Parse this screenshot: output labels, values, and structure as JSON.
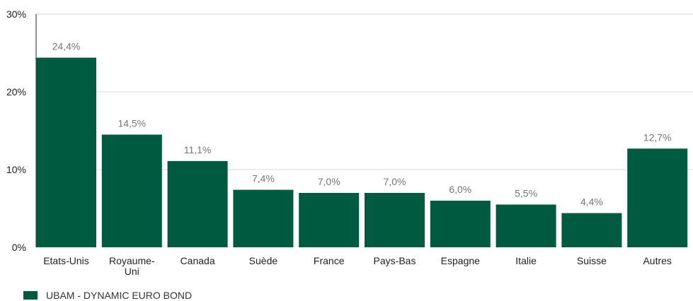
{
  "chart_data": {
    "type": "bar",
    "categories": [
      "Etats-Unis",
      "Royaume-Uni",
      "Canada",
      "Suède",
      "France",
      "Pays-Bas",
      "Espagne",
      "Italie",
      "Suisse",
      "Autres"
    ],
    "category_lines": [
      [
        "Etats-Unis"
      ],
      [
        "Royaume-",
        "Uni"
      ],
      [
        "Canada"
      ],
      [
        "Suède"
      ],
      [
        "France"
      ],
      [
        "Pays-Bas"
      ],
      [
        "Espagne"
      ],
      [
        "Italie"
      ],
      [
        "Suisse"
      ],
      [
        "Autres"
      ]
    ],
    "series": [
      {
        "name": "UBAM - DYNAMIC EURO BOND",
        "values": [
          24.4,
          14.5,
          11.1,
          7.4,
          7.0,
          7.0,
          6.0,
          5.5,
          4.4,
          12.7
        ],
        "labels": [
          "24,4%",
          "14,5%",
          "11,1%",
          "7,4%",
          "7,0%",
          "7,0%",
          "6,0%",
          "5,5%",
          "4,4%",
          "12,7%"
        ]
      }
    ],
    "ylim": [
      0,
      30
    ],
    "yticks": [
      0,
      10,
      20,
      30
    ],
    "ytick_labels": [
      "0%",
      "10%",
      "20%",
      "30%"
    ],
    "grid": true,
    "legend": "bottom-left",
    "bar_color": "#005a3f",
    "grid_color": "#d9d9d9"
  }
}
